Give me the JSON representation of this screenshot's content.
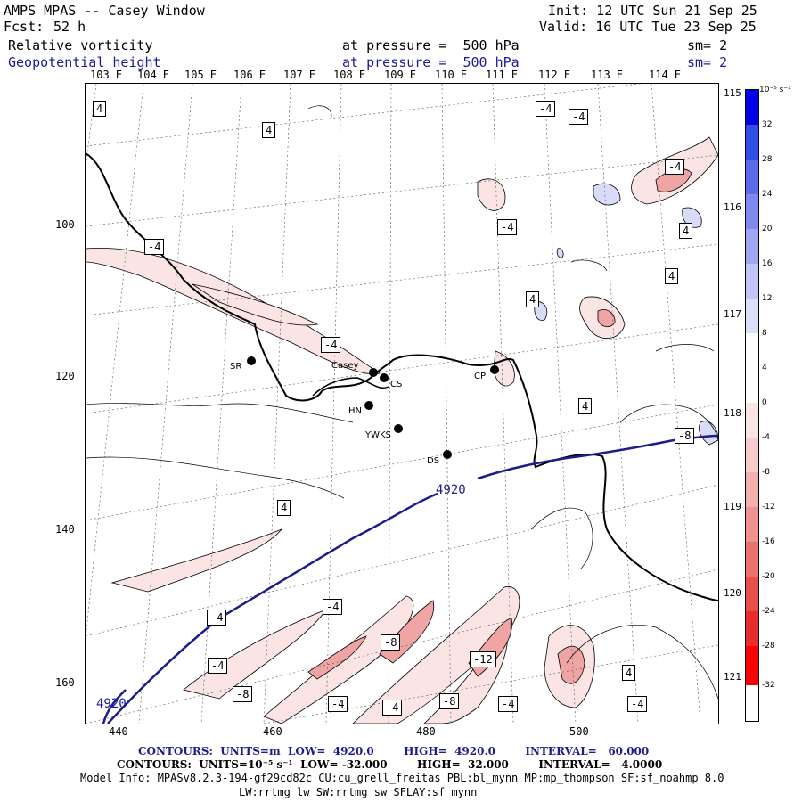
{
  "header": {
    "title": "AMPS MPAS -- Casey Window",
    "fcst_label": "Fcst:",
    "fcst_value": "52 h",
    "init": "Init: 12 UTC Sun 21 Sep 25",
    "valid": "Valid: 16 UTC Tue 23 Sep 25",
    "field1": "Relative vorticity",
    "field1_pressure": "at pressure =  500 hPa",
    "field1_sm": "sm= 2",
    "field2": "Geopotential height",
    "field2_pressure": "at pressure =  500 hPa",
    "field2_sm": "sm= 2"
  },
  "top_longitudes": [
    "103 E",
    "104 E",
    "105 E",
    "106 E",
    "107 E",
    "108 E",
    "109 E",
    "110 E",
    "111 E",
    "112 E",
    "113 E",
    "114 E"
  ],
  "right_longitudes": [
    "115 E",
    "116 E",
    "117 E",
    "118 E",
    "119 E",
    "120 E",
    "121 E"
  ],
  "x_ticks": [
    "440",
    "460",
    "480",
    "500"
  ],
  "y_ticks": [
    "100",
    "120",
    "140",
    "160"
  ],
  "stations": [
    {
      "name": "SR"
    },
    {
      "name": "Casey"
    },
    {
      "name": "CS"
    },
    {
      "name": "HN"
    },
    {
      "name": "YWKS"
    },
    {
      "name": "DS"
    },
    {
      "name": "CP"
    }
  ],
  "contour_labels": {
    "l1": "4",
    "l2": "4",
    "l3": "-4",
    "l4": "-4",
    "l5": "-4",
    "l6": "-4",
    "l7": "4",
    "l8": "4",
    "l9": "-4",
    "l10": "4",
    "l11": "4",
    "l12": "-4",
    "l13": "-4",
    "l14": "-8",
    "l15": "-12",
    "l16": "-8",
    "l17": "-4",
    "l18": "-4",
    "l19": "-4",
    "l20": "-4",
    "l21": "-8",
    "l22": "4",
    "l23": "-4",
    "l24": "-8",
    "l25": "-4"
  },
  "height_contour_label": "4920",
  "height_contour_label2": "4920",
  "colorbar": {
    "unit": "10⁻⁵ s⁻¹",
    "labels": [
      "32",
      "28",
      "24",
      "20",
      "16",
      "12",
      "8",
      "4",
      "0",
      "-4",
      "-8",
      "-12",
      "-16",
      "-20",
      "-24",
      "-28",
      "-32"
    ]
  },
  "footer": {
    "line1": "CONTOURS:  UNITS=m  LOW=  4920.0        HIGH=  4920.0        INTERVAL=   60.000",
    "line2": "CONTOURS:  UNITS=10⁻⁵ s⁻¹  LOW= -32.000        HIGH=  32.000        INTERVAL=   4.0000",
    "line3": "Model Info: MPASv8.2.3-194-gf29cd82c CU:cu_grell_freitas PBL:bl_mynn MP:mp_thompson SF:sf_noahmp 8.0",
    "line4": "LW:rrtmg_lw SW:rrtmg_sw SFLAY:sf_mynn"
  }
}
